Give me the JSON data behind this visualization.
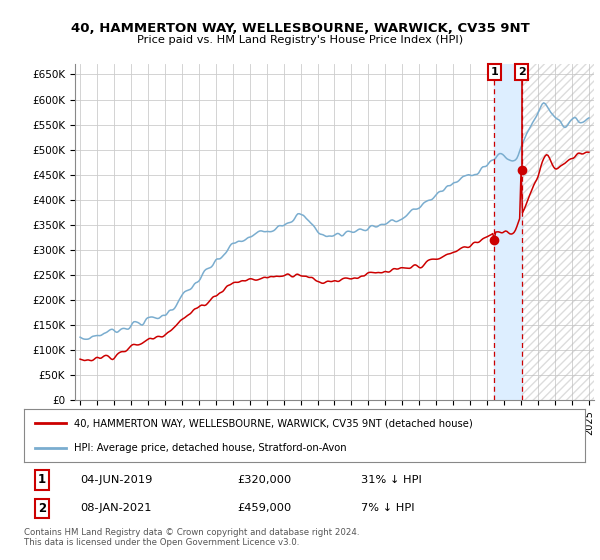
{
  "title": "40, HAMMERTON WAY, WELLESBOURNE, WARWICK, CV35 9NT",
  "subtitle": "Price paid vs. HM Land Registry's House Price Index (HPI)",
  "ylim": [
    0,
    670000
  ],
  "yticks": [
    0,
    50000,
    100000,
    150000,
    200000,
    250000,
    300000,
    350000,
    400000,
    450000,
    500000,
    550000,
    600000,
    650000
  ],
  "ytick_labels": [
    "£0",
    "£50K",
    "£100K",
    "£150K",
    "£200K",
    "£250K",
    "£300K",
    "£350K",
    "£400K",
    "£450K",
    "£500K",
    "£550K",
    "£600K",
    "£650K"
  ],
  "line1_color": "#cc0000",
  "line2_color": "#7aadcf",
  "vline_color": "#cc0000",
  "shade_color": "#ddeeff",
  "hatch_color": "#cccccc",
  "legend_line1": "40, HAMMERTON WAY, WELLESBOURNE, WARWICK, CV35 9NT (detached house)",
  "legend_line2": "HPI: Average price, detached house, Stratford-on-Avon",
  "transaction1_date": "04-JUN-2019",
  "transaction1_price": "£320,000",
  "transaction1_note": "31% ↓ HPI",
  "transaction2_date": "08-JAN-2021",
  "transaction2_price": "£459,000",
  "transaction2_note": "7% ↓ HPI",
  "footnote": "Contains HM Land Registry data © Crown copyright and database right 2024.\nThis data is licensed under the Open Government Licence v3.0.",
  "background_color": "#ffffff",
  "grid_color": "#cccccc",
  "t1_x": 2019.42,
  "t1_y": 320000,
  "t2_x": 2021.03,
  "t2_y": 459000,
  "xlim_left": 1994.7,
  "xlim_right": 2025.3
}
